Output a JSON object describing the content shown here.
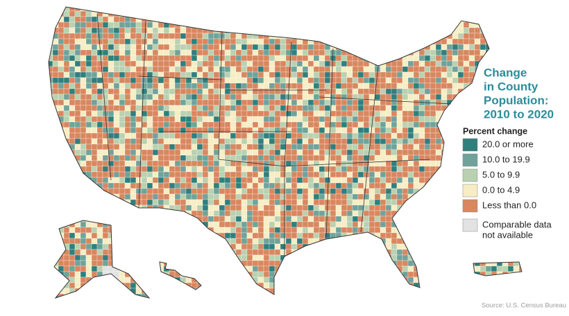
{
  "title_lines": [
    "Change",
    "in County",
    "Population:",
    "2010 to 2020"
  ],
  "legend": {
    "title": "Percent change",
    "items": [
      {
        "label_lines": [
          "20.0 or more"
        ],
        "color": "#2f7f7d"
      },
      {
        "label_lines": [
          "10.0 to 19.9"
        ],
        "color": "#6fa39a"
      },
      {
        "label_lines": [
          "5.0 to 9.9"
        ],
        "color": "#b9d1b0"
      },
      {
        "label_lines": [
          "0.0 to 4.9"
        ],
        "color": "#f6edc4"
      },
      {
        "label_lines": [
          "Less than 0.0"
        ],
        "color": "#d9875f"
      },
      {
        "label_lines": [
          "Comparable data",
          "not available"
        ],
        "color": "#e2e2e2"
      }
    ]
  },
  "source": "Source: U.S. Census Bureau"
}
